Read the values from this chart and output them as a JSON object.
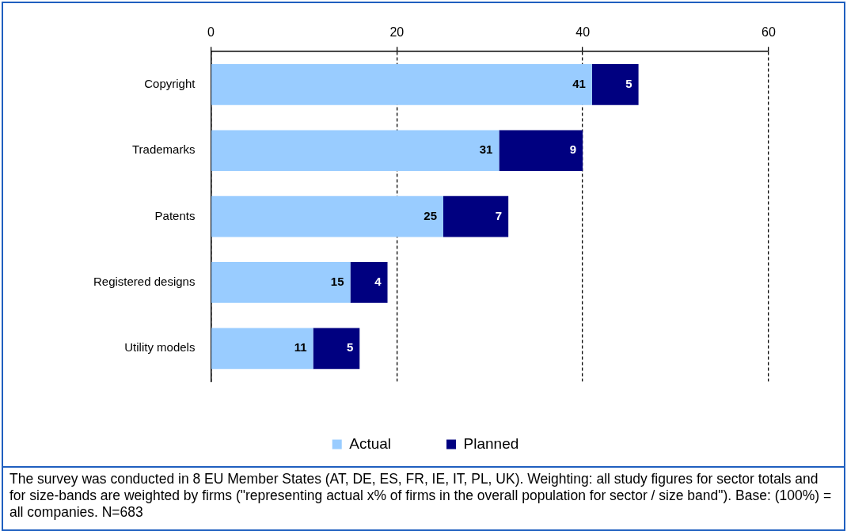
{
  "chart_data": {
    "type": "bar",
    "orientation": "horizontal",
    "stacked": true,
    "categories": [
      "Copyright",
      "Trademarks",
      "Patents",
      "Registered designs",
      "Utility models"
    ],
    "series": [
      {
        "name": "Actual",
        "color": "#99ccff",
        "values": [
          41,
          31,
          25,
          15,
          11
        ]
      },
      {
        "name": "Planned",
        "color": "#000080",
        "values": [
          5,
          9,
          7,
          4,
          5
        ]
      }
    ],
    "xlim": [
      0,
      60
    ],
    "xticks": [
      0,
      20,
      40,
      60
    ],
    "grid": "x",
    "legend": "bottom",
    "data_labels": true,
    "annotations": [
      "The survey was conducted in 8 EU Member States (AT, DE, ES, FR, IE, IT, PL, UK). Weighting: all study figures for sector totals and for size-bands are weighted by firms (\"representing actual  x% of firms in the overall population for sector / size band\").  Base: (100%) = all companies. N=683"
    ]
  }
}
